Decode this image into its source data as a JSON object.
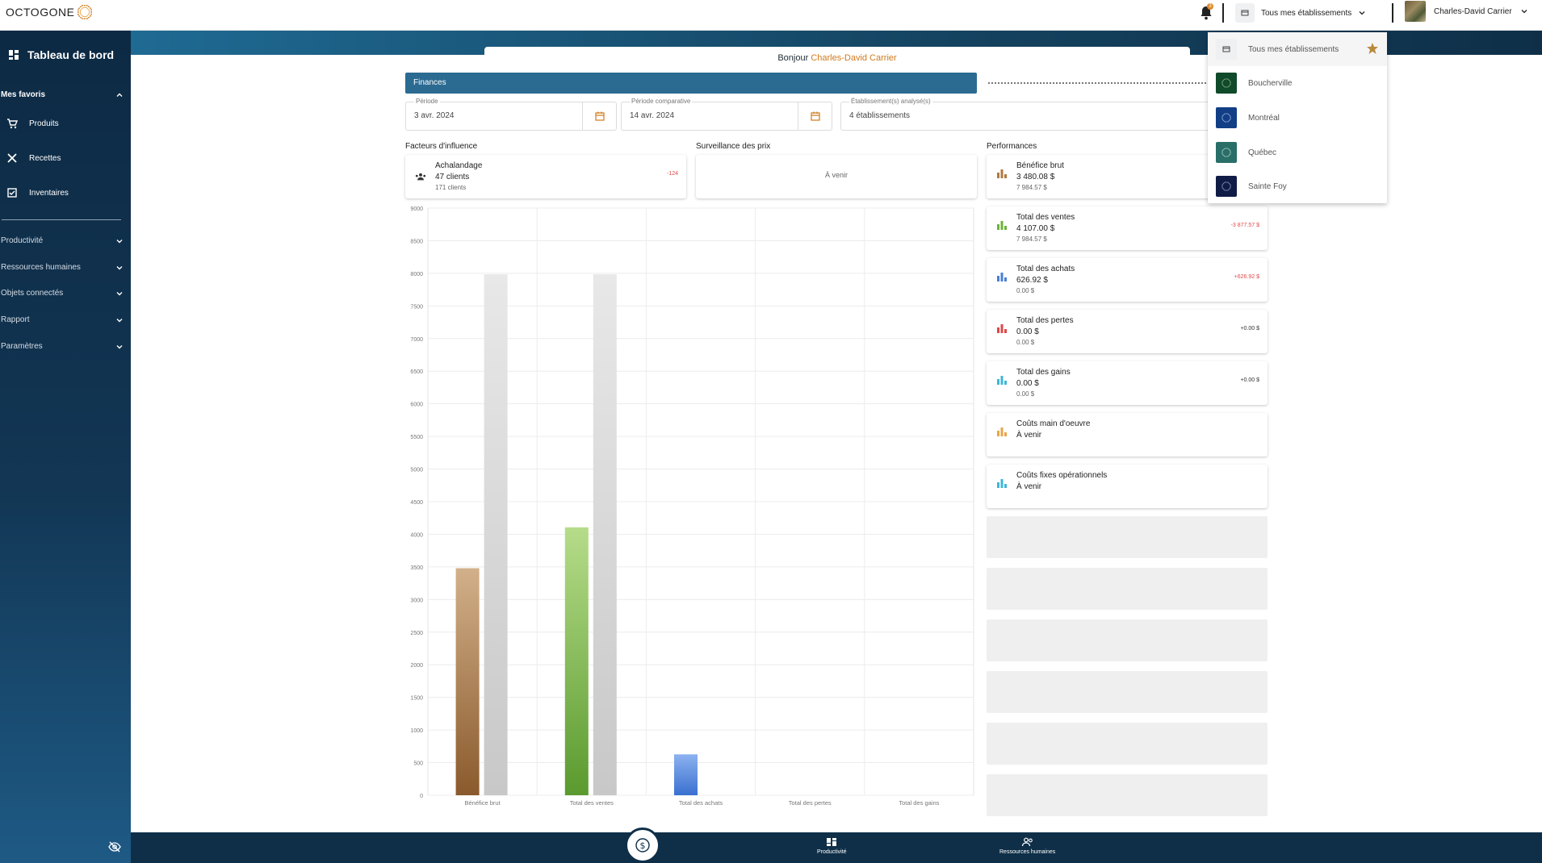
{
  "brand": {
    "logo_text": "OCTOGONE",
    "accent": "#d07a1c"
  },
  "topbar": {
    "notification_count": "3",
    "establishment_selector": "Tous mes établissements",
    "user_name": "Charles-David Carrier"
  },
  "sidebar": {
    "title": "Tableau de bord",
    "favorites_label": "Mes favoris",
    "favorites": [
      {
        "label": "Produits",
        "icon": "cart-icon"
      },
      {
        "label": "Recettes",
        "icon": "utensils-icon"
      },
      {
        "label": "Inventaires",
        "icon": "inventory-icon"
      }
    ],
    "sections": [
      "Productivité",
      "Ressources humaines",
      "Objets connectés",
      "Rapport",
      "Paramètres"
    ]
  },
  "greeting": {
    "prefix": "Bonjour",
    "name": "Charles-David Carrier"
  },
  "finances_tab": "Finances",
  "filters": {
    "period_label": "Période",
    "period_value": "3 avr. 2024",
    "compare_label": "Période comparative",
    "compare_value": "14 avr. 2024",
    "estab_label": "Établissement(s) analysé(s)",
    "estab_value": "4 établissements"
  },
  "sections": {
    "influence": "Facteurs d'influence",
    "price_watch": "Surveillance des prix",
    "performance": "Performances"
  },
  "influence_card": {
    "name": "Achalandage",
    "value": "47 clients",
    "compare": "171 clients",
    "delta": "-124"
  },
  "price_watch_card": {
    "text": "À venir"
  },
  "performance_cards": [
    {
      "name": "Bénéfice brut",
      "value": "3 480.08 $",
      "compare": "7 984.57 $",
      "delta": "",
      "color": "#b07a40"
    },
    {
      "name": "Total des ventes",
      "value": "4 107.00 $",
      "compare": "7 984.57 $",
      "delta": "-3 877.57 $",
      "color": "#6bb33a"
    },
    {
      "name": "Total des achats",
      "value": "626.92 $",
      "compare": "0.00 $",
      "delta": "+626.92 $",
      "color": "#4a7fd6"
    },
    {
      "name": "Total des pertes",
      "value": "0.00 $",
      "compare": "0.00 $",
      "delta": "+0.00 $",
      "color": "#e04848"
    },
    {
      "name": "Total des gains",
      "value": "0.00 $",
      "compare": "0.00 $",
      "delta": "+0.00 $",
      "color": "#3fb6d8"
    },
    {
      "name": "Coûts main d'oeuvre",
      "value": "À venir",
      "compare": "",
      "delta": "",
      "color": "#e8a64a"
    },
    {
      "name": "Coûts fixes opérationnels",
      "value": "À venir",
      "compare": "",
      "delta": "",
      "color": "#3fb6d8"
    }
  ],
  "dropdown": {
    "items": [
      {
        "label": "Tous mes établissements",
        "color": "#eef0f2"
      },
      {
        "label": "Boucherville",
        "color": "#0f4a2a"
      },
      {
        "label": "Montréal",
        "color": "#123e86"
      },
      {
        "label": "Québec",
        "color": "#2a6e68"
      },
      {
        "label": "Sainte Foy",
        "color": "#101c46"
      }
    ]
  },
  "bottombar": {
    "items": [
      {
        "label": "Productivité",
        "icon": "dashboard-icon"
      },
      {
        "label": "Ressources humaines",
        "icon": "people-icon"
      }
    ]
  },
  "chart_data": {
    "type": "bar",
    "categories": [
      "Bénéfice brut",
      "Total des ventes",
      "Total des achats",
      "Total des pertes",
      "Total des gains"
    ],
    "series": [
      {
        "values": [
          3480.08,
          4107.0,
          626.92,
          0,
          0
        ],
        "colors": [
          [
            "#d2b08a",
            "#8a5a2c"
          ],
          [
            "#b6dc8a",
            "#5a9a2e"
          ],
          [
            "#8cb2f0",
            "#3a70d0"
          ],
          [
            "#f08080",
            "#c03030"
          ],
          [
            "#8ad8ee",
            "#2a9ec2"
          ]
        ]
      },
      {
        "values": [
          7984.57,
          7984.57,
          0,
          0,
          0
        ],
        "colors": [
          [
            "#e8e8e8",
            "#c8c8c8"
          ]
        ]
      }
    ],
    "ylim": [
      0,
      9000
    ],
    "yticks": [
      0,
      500,
      1000,
      1500,
      2000,
      2500,
      3000,
      3500,
      4000,
      4500,
      5000,
      5500,
      6000,
      6500,
      7000,
      7500,
      8000,
      8500,
      9000
    ],
    "grid": true
  }
}
